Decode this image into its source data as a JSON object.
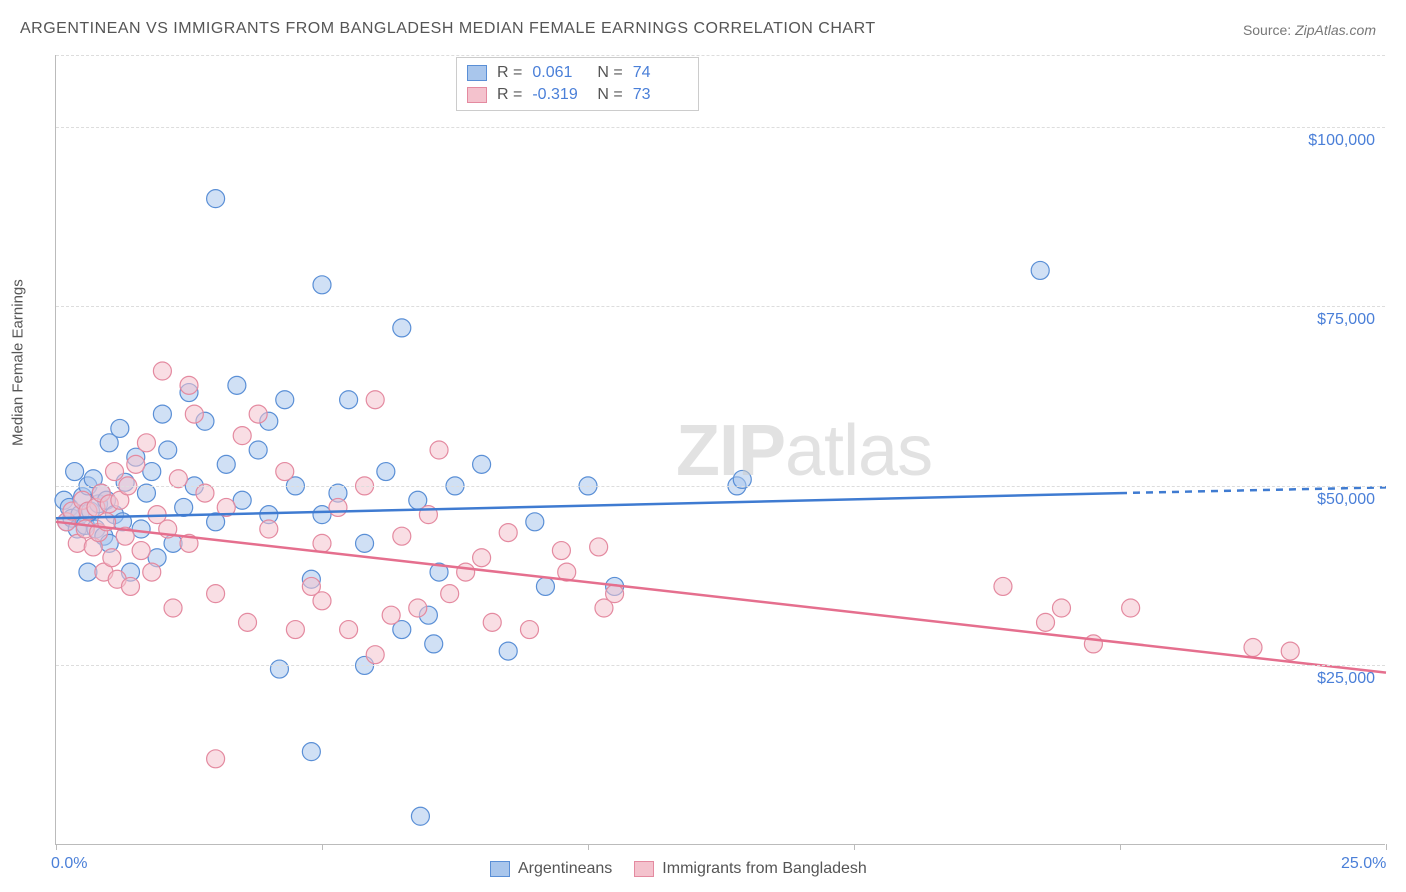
{
  "title": "ARGENTINEAN VS IMMIGRANTS FROM BANGLADESH MEDIAN FEMALE EARNINGS CORRELATION CHART",
  "source_label": "Source:",
  "source_value": "ZipAtlas.com",
  "y_axis_label": "Median Female Earnings",
  "watermark_bold": "ZIP",
  "watermark_light": "atlas",
  "chart": {
    "type": "scatter",
    "xlim": [
      0,
      25
    ],
    "ylim": [
      0,
      110000
    ],
    "x_ticks": [
      0,
      5,
      10,
      15,
      20,
      25
    ],
    "x_tick_labels": {
      "0": "0.0%",
      "25": "25.0%"
    },
    "y_gridlines": [
      25000,
      50000,
      75000,
      100000,
      110000
    ],
    "y_tick_labels": {
      "25000": "$25,000",
      "50000": "$50,000",
      "75000": "$75,000",
      "100000": "$100,000"
    },
    "background_color": "#ffffff",
    "grid_color": "#dddddd",
    "axis_color": "#bbbbbb",
    "marker_radius": 9,
    "marker_opacity": 0.55,
    "marker_stroke_width": 1.2,
    "trend_line_width": 2.5,
    "series": [
      {
        "name": "Argentineans",
        "fill": "#a9c6ec",
        "stroke": "#5a8fd6",
        "line_color": "#3f7bd1",
        "R": "0.061",
        "N": "74",
        "trend": {
          "x1": 0,
          "y1": 45500,
          "x2": 20,
          "y2": 49000,
          "x3": 25,
          "y3": 49800,
          "dashed_from": 20
        },
        "points": [
          [
            0.15,
            48000
          ],
          [
            0.2,
            45000
          ],
          [
            0.25,
            47000
          ],
          [
            0.3,
            45500
          ],
          [
            0.35,
            52000
          ],
          [
            0.4,
            44000
          ],
          [
            0.45,
            46000
          ],
          [
            0.5,
            48500
          ],
          [
            0.55,
            44500
          ],
          [
            0.6,
            50000
          ],
          [
            0.6,
            38000
          ],
          [
            0.65,
            46500
          ],
          [
            0.7,
            51000
          ],
          [
            0.75,
            44000
          ],
          [
            0.8,
            47500
          ],
          [
            0.85,
            49000
          ],
          [
            0.9,
            43000
          ],
          [
            0.95,
            48000
          ],
          [
            1.0,
            56000
          ],
          [
            1.0,
            42000
          ],
          [
            1.1,
            46000
          ],
          [
            1.2,
            58000
          ],
          [
            1.25,
            45000
          ],
          [
            1.3,
            50500
          ],
          [
            1.4,
            38000
          ],
          [
            1.5,
            54000
          ],
          [
            1.6,
            44000
          ],
          [
            1.7,
            49000
          ],
          [
            1.8,
            52000
          ],
          [
            1.9,
            40000
          ],
          [
            2.0,
            60000
          ],
          [
            2.1,
            55000
          ],
          [
            2.2,
            42000
          ],
          [
            2.4,
            47000
          ],
          [
            2.5,
            63000
          ],
          [
            2.6,
            50000
          ],
          [
            2.8,
            59000
          ],
          [
            3.0,
            45000
          ],
          [
            3.0,
            90000
          ],
          [
            3.2,
            53000
          ],
          [
            3.4,
            64000
          ],
          [
            3.5,
            48000
          ],
          [
            3.8,
            55000
          ],
          [
            4.0,
            46000
          ],
          [
            4.0,
            59000
          ],
          [
            4.2,
            24500
          ],
          [
            4.3,
            62000
          ],
          [
            4.5,
            50000
          ],
          [
            4.8,
            37000
          ],
          [
            4.8,
            13000
          ],
          [
            5.0,
            78000
          ],
          [
            5.0,
            46000
          ],
          [
            5.3,
            49000
          ],
          [
            5.5,
            62000
          ],
          [
            5.8,
            42000
          ],
          [
            5.8,
            25000
          ],
          [
            6.2,
            52000
          ],
          [
            6.5,
            72000
          ],
          [
            6.5,
            30000
          ],
          [
            6.8,
            48000
          ],
          [
            6.85,
            4000
          ],
          [
            7.0,
            32000
          ],
          [
            7.1,
            28000
          ],
          [
            7.2,
            38000
          ],
          [
            7.5,
            50000
          ],
          [
            8.0,
            53000
          ],
          [
            8.5,
            27000
          ],
          [
            9.0,
            45000
          ],
          [
            9.2,
            36000
          ],
          [
            10.0,
            50000
          ],
          [
            10.5,
            36000
          ],
          [
            12.8,
            50000
          ],
          [
            12.9,
            50900
          ],
          [
            18.5,
            80000
          ]
        ]
      },
      {
        "name": "Immigrants from Bangladesh",
        "fill": "#f4c2cd",
        "stroke": "#e48aa0",
        "line_color": "#e56f8e",
        "R": "-0.319",
        "N": "73",
        "trend": {
          "x1": 0,
          "y1": 45000,
          "x2": 25,
          "y2": 24000
        },
        "points": [
          [
            0.2,
            45000
          ],
          [
            0.3,
            46500
          ],
          [
            0.4,
            42000
          ],
          [
            0.5,
            48000
          ],
          [
            0.55,
            44000
          ],
          [
            0.6,
            46500
          ],
          [
            0.7,
            41500
          ],
          [
            0.75,
            47000
          ],
          [
            0.8,
            43500
          ],
          [
            0.85,
            49000
          ],
          [
            0.9,
            38000
          ],
          [
            0.95,
            45000
          ],
          [
            1.0,
            47500
          ],
          [
            1.05,
            40000
          ],
          [
            1.1,
            52000
          ],
          [
            1.15,
            37000
          ],
          [
            1.2,
            48000
          ],
          [
            1.3,
            43000
          ],
          [
            1.35,
            50000
          ],
          [
            1.4,
            36000
          ],
          [
            1.5,
            53000
          ],
          [
            1.6,
            41000
          ],
          [
            1.7,
            56000
          ],
          [
            1.8,
            38000
          ],
          [
            1.9,
            46000
          ],
          [
            2.0,
            66000
          ],
          [
            2.1,
            44000
          ],
          [
            2.2,
            33000
          ],
          [
            2.3,
            51000
          ],
          [
            2.5,
            42000
          ],
          [
            2.5,
            64000
          ],
          [
            2.6,
            60000
          ],
          [
            2.8,
            49000
          ],
          [
            3.0,
            35000
          ],
          [
            3.0,
            12000
          ],
          [
            3.2,
            47000
          ],
          [
            3.5,
            57000
          ],
          [
            3.6,
            31000
          ],
          [
            3.8,
            60000
          ],
          [
            4.0,
            44000
          ],
          [
            4.3,
            52000
          ],
          [
            4.5,
            30000
          ],
          [
            4.8,
            36000
          ],
          [
            5.0,
            34000
          ],
          [
            5.0,
            42000
          ],
          [
            5.3,
            47000
          ],
          [
            5.5,
            30000
          ],
          [
            5.8,
            50000
          ],
          [
            6.0,
            62000
          ],
          [
            6.0,
            26500
          ],
          [
            6.3,
            32000
          ],
          [
            6.5,
            43000
          ],
          [
            6.8,
            33000
          ],
          [
            7.0,
            46000
          ],
          [
            7.2,
            55000
          ],
          [
            7.4,
            35000
          ],
          [
            7.7,
            38000
          ],
          [
            8.0,
            40000
          ],
          [
            8.2,
            31000
          ],
          [
            8.5,
            43500
          ],
          [
            8.9,
            30000
          ],
          [
            9.5,
            41000
          ],
          [
            9.6,
            38000
          ],
          [
            10.2,
            41500
          ],
          [
            10.3,
            33000
          ],
          [
            10.5,
            35000
          ],
          [
            17.8,
            36000
          ],
          [
            18.6,
            31000
          ],
          [
            18.9,
            33000
          ],
          [
            19.5,
            28000
          ],
          [
            20.2,
            33000
          ],
          [
            22.5,
            27500
          ],
          [
            23.2,
            27000
          ]
        ]
      }
    ]
  },
  "legend_top": {
    "R_label": "R =",
    "N_label": "N ="
  },
  "legend_bottom": [
    {
      "label": "Argentineans",
      "fill": "#a9c6ec",
      "stroke": "#5a8fd6"
    },
    {
      "label": "Immigrants from Bangladesh",
      "fill": "#f4c2cd",
      "stroke": "#e48aa0"
    }
  ]
}
